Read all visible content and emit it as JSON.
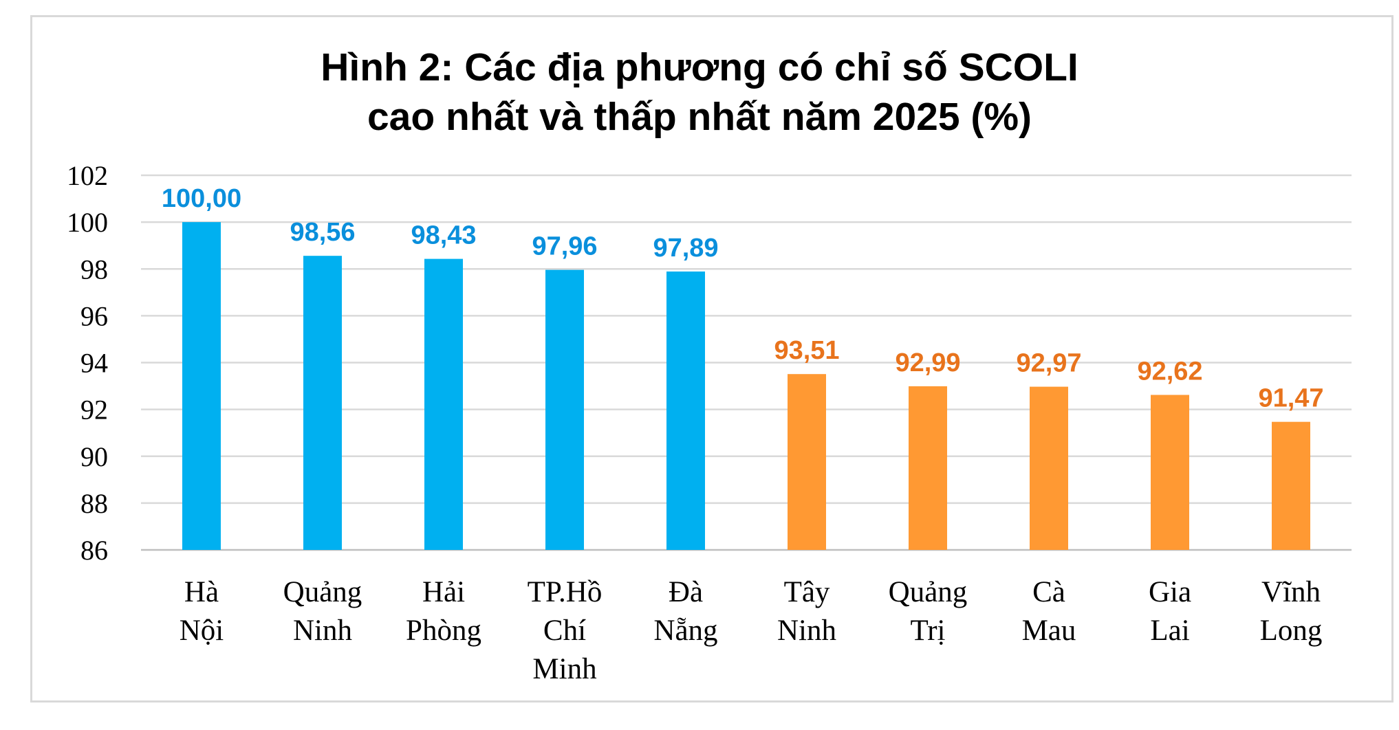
{
  "chart_data": {
    "type": "bar",
    "title_lines": [
      "Hình 2: Các địa phương có chỉ số SCOLI",
      "cao nhất và thấp nhất năm 2025 (%)"
    ],
    "categories": [
      [
        "Hà",
        "Nội"
      ],
      [
        "Quảng",
        "Ninh"
      ],
      [
        "Hải",
        "Phòng"
      ],
      [
        "TP.Hồ",
        "Chí",
        "Minh"
      ],
      [
        "Đà",
        "Nẵng"
      ],
      [
        "Tây",
        "Ninh"
      ],
      [
        "Quảng",
        "Trị"
      ],
      [
        "Cà",
        "Mau"
      ],
      [
        "Gia",
        "Lai"
      ],
      [
        "Vĩnh",
        "Long"
      ]
    ],
    "values": [
      100.0,
      98.56,
      98.43,
      97.96,
      97.89,
      93.51,
      92.99,
      92.97,
      92.62,
      91.47
    ],
    "value_labels": [
      "100,00",
      "98,56",
      "98,43",
      "97,96",
      "97,89",
      "93,51",
      "92,99",
      "92,97",
      "92,62",
      "91,47"
    ],
    "groups": [
      {
        "name": "highest",
        "color": "#00b0f0",
        "count": 5
      },
      {
        "name": "lowest",
        "color": "#ff9933",
        "count": 5
      }
    ],
    "label_colors": {
      "highest": "#0a8fdc",
      "lowest": "#e8731c"
    },
    "ylim": [
      86,
      102
    ],
    "yticks": [
      86,
      88,
      90,
      92,
      94,
      96,
      98,
      100,
      102
    ],
    "xlabel": "",
    "ylabel": "",
    "grid": true,
    "legend": "none"
  }
}
